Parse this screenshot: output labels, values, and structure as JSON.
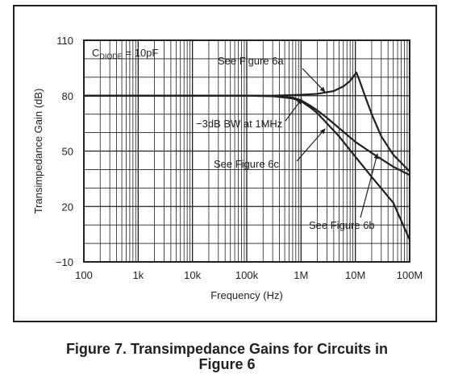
{
  "chart_data": {
    "type": "line",
    "xlabel": "Frequency (Hz)",
    "ylabel": "Transimpedance Gain (dB)",
    "xscale": "log",
    "xlim": [
      100,
      100000000
    ],
    "ylim": [
      -10,
      110
    ],
    "grid": true,
    "x_ticks": [
      {
        "value": 100,
        "label": "100"
      },
      {
        "value": 1000,
        "label": "1k"
      },
      {
        "value": 10000,
        "label": "10k"
      },
      {
        "value": 100000,
        "label": "100k"
      },
      {
        "value": 1000000,
        "label": "1M"
      },
      {
        "value": 10000000,
        "label": "10M"
      },
      {
        "value": 100000000,
        "label": "100M"
      }
    ],
    "y_ticks": [
      {
        "value": 110,
        "label": "110"
      },
      {
        "value": 80,
        "label": "80"
      },
      {
        "value": 50,
        "label": "50"
      },
      {
        "value": 20,
        "label": "20"
      },
      {
        "value": -10,
        "label": "−10"
      }
    ],
    "series": [
      {
        "color": "#231f20",
        "x": [
          100,
          1000,
          10000,
          100000,
          300000,
          1000000,
          2000000,
          4000000,
          6000000,
          8000000,
          9500000,
          10500000,
          12000000,
          15000000,
          20000000,
          30000000,
          50000000,
          100000000
        ],
        "y": [
          80,
          80,
          80,
          80,
          80,
          80.5,
          81,
          82.5,
          85,
          88,
          91,
          92.5,
          88,
          80,
          70,
          58,
          48,
          39
        ]
      },
      {
        "color": "#231f20",
        "x": [
          100,
          1000,
          10000,
          100000,
          300000,
          700000,
          1000000,
          1500000,
          2000000,
          3000000,
          5000000,
          10000000,
          20000000,
          50000000,
          100000000
        ],
        "y": [
          80,
          80,
          80,
          80,
          79.8,
          79,
          77.5,
          74.5,
          72,
          68,
          62.5,
          55,
          49,
          41.5,
          37
        ]
      },
      {
        "color": "#231f20",
        "x": [
          100,
          1000,
          10000,
          100000,
          300000,
          700000,
          1000000,
          1500000,
          2000000,
          3000000,
          5000000,
          10000000,
          20000000,
          50000000,
          100000000
        ],
        "y": [
          80,
          80,
          80,
          80,
          79.7,
          78.5,
          77,
          73.5,
          70.5,
          65,
          58,
          47,
          36,
          22,
          2
        ]
      }
    ],
    "annotations": {
      "diode_main": "C",
      "diode_sub": "DIODE",
      "diode_rest": " = 10pF",
      "fig6a": "See Figure 6a",
      "bw": "−3dB BW at 1MHz",
      "fig6c": "See Figure 6c",
      "fig6b": "See Figure 6b"
    }
  },
  "caption": {
    "line1": "Figure 7. Transimpedance Gains for Circuits in",
    "line2": "Figure 6"
  }
}
